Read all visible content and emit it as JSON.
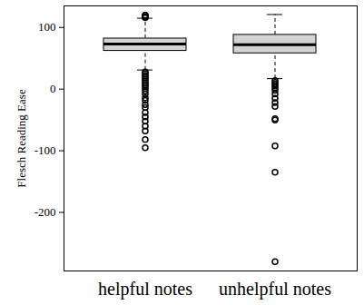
{
  "chart_data": {
    "type": "box",
    "y_label": "Flesch Reading Ease",
    "categories": [
      "helpful notes",
      "unhelpful notes"
    ],
    "color": "#d3d3d3",
    "ylim": [
      -295,
      135
    ],
    "yticks": [
      -200,
      -100,
      0,
      100
    ],
    "grid": false,
    "stats": [
      {
        "whisker_low": 31,
        "q1": 62,
        "median": 73,
        "q3": 82,
        "whisker_high": 115,
        "outliers": [
          116,
          117,
          118,
          119,
          120,
          28,
          25,
          22,
          19,
          16,
          13,
          10,
          7,
          4,
          1,
          -3,
          -8,
          -14,
          -18,
          -25,
          -30,
          -38,
          -45,
          -52,
          -60,
          -68,
          -82,
          -95
        ]
      },
      {
        "whisker_low": 17,
        "q1": 58,
        "median": 72,
        "q3": 88,
        "whisker_high": 121,
        "outliers": [
          14,
          11,
          8,
          5,
          2,
          -2,
          -8,
          -15,
          -22,
          -28,
          -48,
          -50,
          -92,
          -135,
          -280
        ]
      }
    ]
  }
}
